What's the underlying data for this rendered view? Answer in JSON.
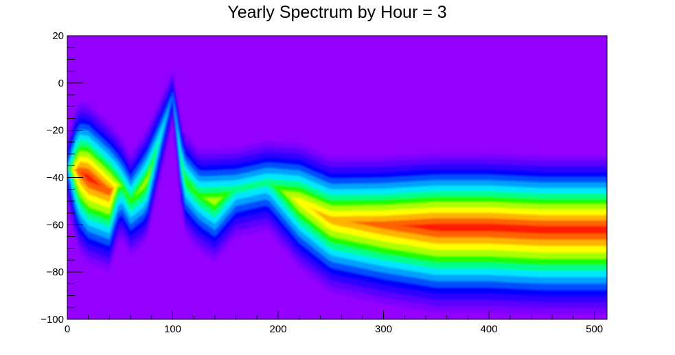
{
  "chart_data": {
    "type": "heatmap",
    "title": "Yearly Spectrum by Hour = 3",
    "xlabel": "",
    "ylabel": "",
    "xlim": [
      0,
      512
    ],
    "ylim": [
      -100,
      20
    ],
    "x_ticks": [
      0,
      100,
      200,
      300,
      400,
      500
    ],
    "y_ticks": [
      -100,
      -80,
      -60,
      -40,
      -20,
      0,
      20
    ],
    "x_tick_labels": [
      "0",
      "100",
      "200",
      "300",
      "400",
      "500"
    ],
    "y_tick_labels": [
      "−100",
      "−80",
      "−60",
      "−40",
      "−20",
      "0",
      "20"
    ],
    "palette": [
      "#9300ff",
      "#7d00ff",
      "#5a00ff",
      "#2e00ff",
      "#0000ff",
      "#0050ff",
      "#00a0ff",
      "#00e6ff",
      "#00ff8c",
      "#1eff00",
      "#aaff00",
      "#ffff00",
      "#ffb400",
      "#ff6400",
      "#ff1e00"
    ],
    "background_color": "#9300ff",
    "ridge": [
      {
        "x": 0,
        "y": -36,
        "level": 6
      },
      {
        "x": 10,
        "y": -37,
        "level": 13
      },
      {
        "x": 20,
        "y": -40,
        "level": 14
      },
      {
        "x": 40,
        "y": -46,
        "level": 13
      },
      {
        "x": 50,
        "y": -42,
        "level": 9
      },
      {
        "x": 60,
        "y": -50,
        "level": 9
      },
      {
        "x": 75,
        "y": -42,
        "level": 10
      },
      {
        "x": 90,
        "y": -20,
        "level": 7
      },
      {
        "x": 100,
        "y": -5,
        "level": 5
      },
      {
        "x": 110,
        "y": -40,
        "level": 9
      },
      {
        "x": 125,
        "y": -48,
        "level": 9
      },
      {
        "x": 140,
        "y": -50,
        "level": 10
      },
      {
        "x": 160,
        "y": -45,
        "level": 8
      },
      {
        "x": 190,
        "y": -42,
        "level": 8
      },
      {
        "x": 220,
        "y": -50,
        "level": 11
      },
      {
        "x": 250,
        "y": -58,
        "level": 12
      },
      {
        "x": 300,
        "y": -60,
        "level": 13
      },
      {
        "x": 350,
        "y": -61,
        "level": 14
      },
      {
        "x": 400,
        "y": -61,
        "level": 14
      },
      {
        "x": 450,
        "y": -62,
        "level": 14
      },
      {
        "x": 512,
        "y": -62,
        "level": 14
      }
    ]
  }
}
